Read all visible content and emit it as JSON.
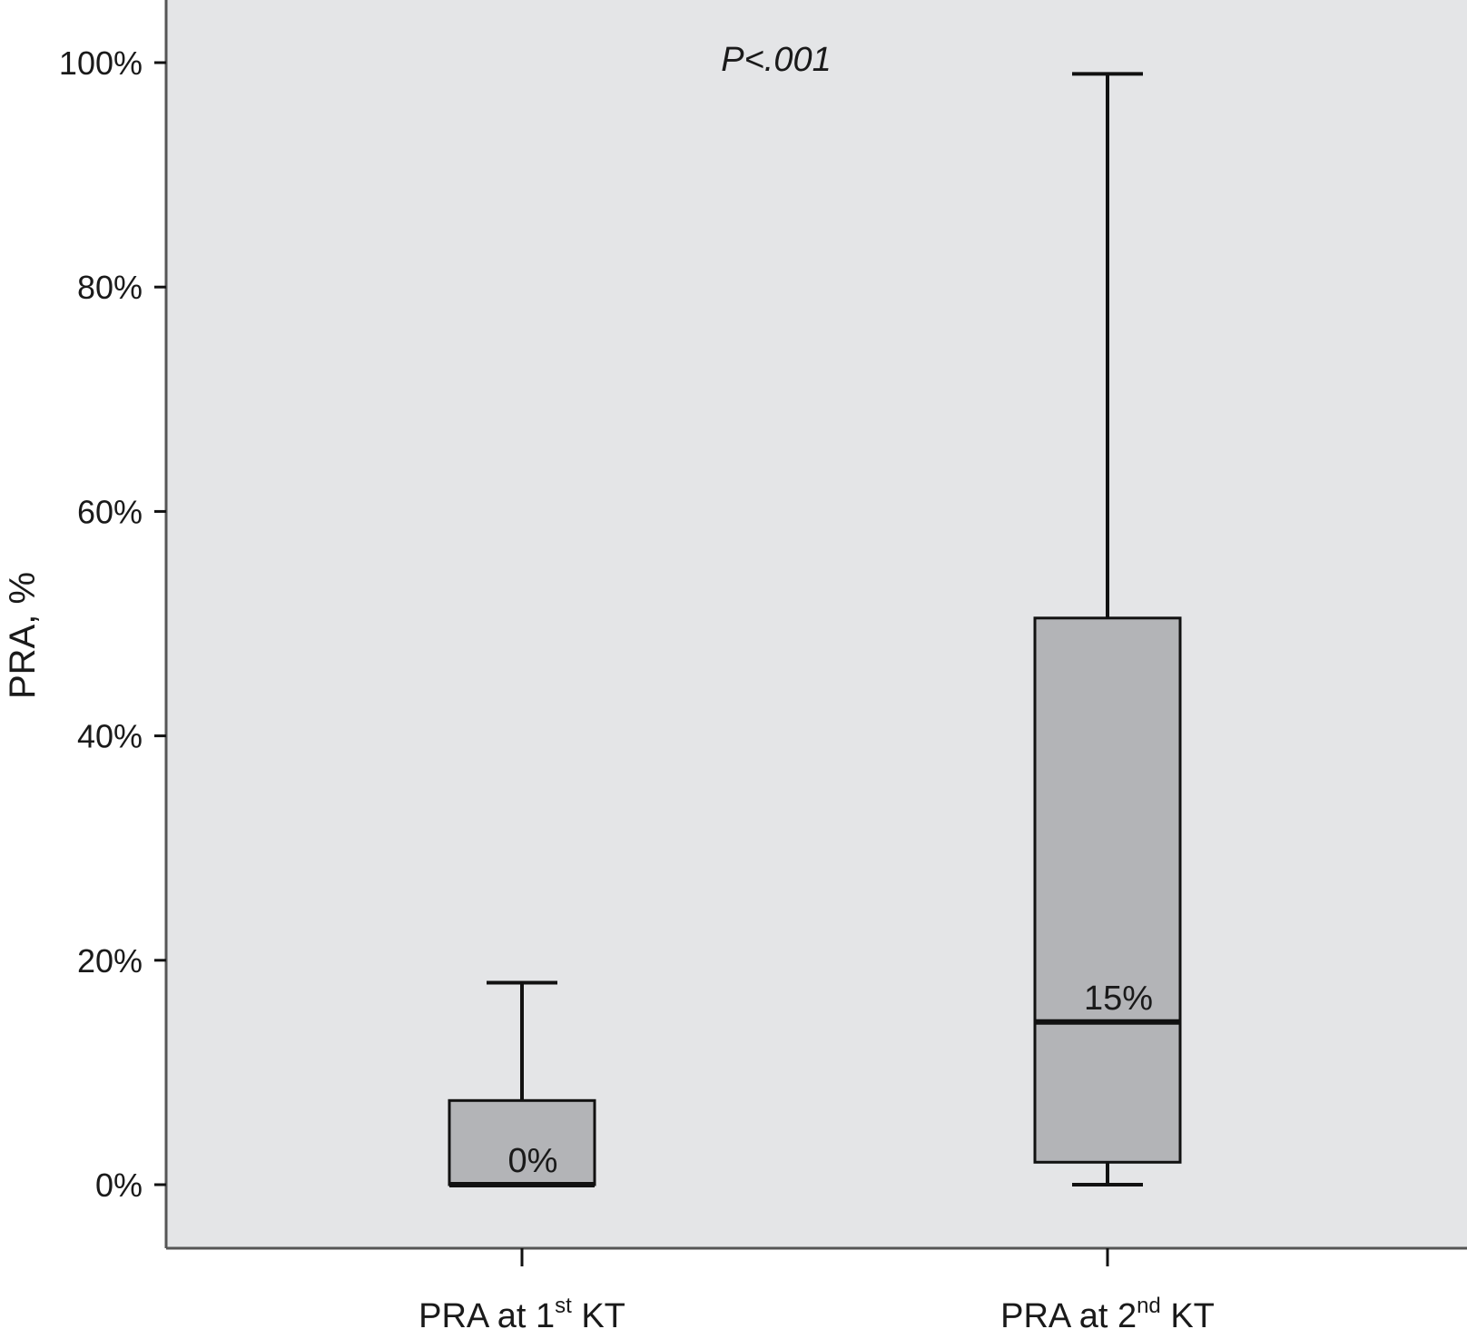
{
  "chart_data": {
    "type": "box",
    "ylabel": "PRA, %",
    "ylim": [
      -5.5,
      105
    ],
    "yticks": [
      0,
      20,
      40,
      60,
      80,
      100
    ],
    "ytick_labels": [
      "0%",
      "20%",
      "40%",
      "60%",
      "80%",
      "100%"
    ],
    "annotation": "P<.001",
    "grid": false,
    "colors": {
      "plot_bg": "#e4e5e7",
      "box_fill": "#b3b4b7",
      "line": "#111111",
      "axis": "#555555"
    },
    "categories": [
      {
        "label_main": "PRA at 1",
        "label_sup": "st",
        "label_tail": " KT"
      },
      {
        "label_main": "PRA at 2",
        "label_sup": "nd",
        "label_tail": " KT"
      }
    ],
    "boxes": [
      {
        "whisker_low": 0,
        "q1": 0,
        "median": 0,
        "q3": 7.5,
        "whisker_high": 18,
        "median_label": "0%"
      },
      {
        "whisker_low": 0,
        "q1": 2,
        "median": 14.5,
        "q3": 50.5,
        "whisker_high": 99,
        "median_label": "15%"
      }
    ]
  }
}
